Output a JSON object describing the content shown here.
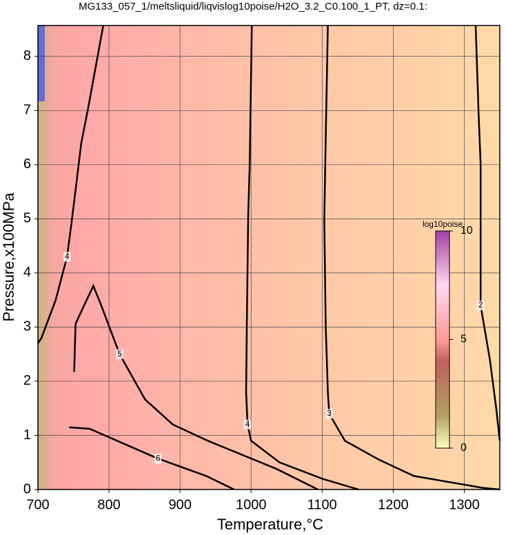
{
  "chart_data": {
    "type": "contour",
    "title": "MG133_057_1/meltsliquid/liqvislog10poise/H2O_3.2_C0.100_1_PT, dz=0.1:",
    "xlabel": "Temperature,°C",
    "ylabel": "Pressure,x100MPa",
    "xlim": [
      700,
      1350
    ],
    "ylim": [
      0,
      8.57
    ],
    "xticks": [
      700,
      800,
      900,
      1000,
      1100,
      1200,
      1300
    ],
    "yticks": [
      0,
      1,
      2,
      3,
      4,
      5,
      6,
      7,
      8
    ],
    "grid": true,
    "contours": [
      {
        "level": 4,
        "points": [
          [
            792,
            8.57
          ],
          [
            770,
            7
          ],
          [
            761,
            6.4
          ],
          [
            748,
            5
          ],
          [
            741,
            4.3
          ],
          [
            725,
            3.5
          ],
          [
            705,
            2.8
          ],
          [
            700,
            2.7
          ]
        ]
      },
      {
        "level": 4,
        "points": [
          [
            1001,
            8.57
          ],
          [
            998,
            6
          ],
          [
            996,
            5.1
          ],
          [
            994,
            3
          ],
          [
            993,
            1.8
          ],
          [
            995,
            1.2
          ],
          [
            1000,
            0.9
          ],
          [
            1040,
            0.5
          ],
          [
            1100,
            0.2
          ],
          [
            1151,
            0
          ]
        ]
      },
      {
        "level": 3,
        "points": [
          [
            1108,
            8.57
          ],
          [
            1105,
            6.5
          ],
          [
            1103,
            4.97
          ],
          [
            1105,
            3
          ],
          [
            1108,
            1.8
          ],
          [
            1110,
            1.4
          ],
          [
            1132,
            0.9
          ],
          [
            1180,
            0.55
          ],
          [
            1229,
            0.25
          ],
          [
            1326,
            0.03
          ],
          [
            1350,
            0
          ]
        ]
      },
      {
        "level": 2,
        "points": [
          [
            1316,
            8.57
          ],
          [
            1320,
            7
          ],
          [
            1323,
            6
          ],
          [
            1323,
            3.4
          ],
          [
            1336,
            2.4
          ],
          [
            1345,
            1.5
          ],
          [
            1350,
            0.9
          ]
        ]
      },
      {
        "level": 5,
        "points": [
          [
            751,
            2.17
          ],
          [
            753,
            3.06
          ],
          [
            765,
            3.4
          ],
          [
            778,
            3.76
          ],
          [
            788,
            3.44
          ],
          [
            815,
            2.5
          ],
          [
            851,
            1.66
          ],
          [
            890,
            1.2
          ],
          [
            939,
            0.9
          ],
          [
            1036,
            0.38
          ],
          [
            1094,
            0
          ]
        ]
      },
      {
        "level": 6,
        "points": [
          [
            744,
            1.15
          ],
          [
            773,
            1.12
          ],
          [
            820,
            0.85
          ],
          [
            869,
            0.57
          ],
          [
            937,
            0.25
          ],
          [
            976,
            0
          ]
        ]
      }
    ],
    "colorbar": {
      "title": "log10poise",
      "clim": [
        0,
        10
      ],
      "ticks": [
        0,
        5,
        10
      ]
    }
  }
}
